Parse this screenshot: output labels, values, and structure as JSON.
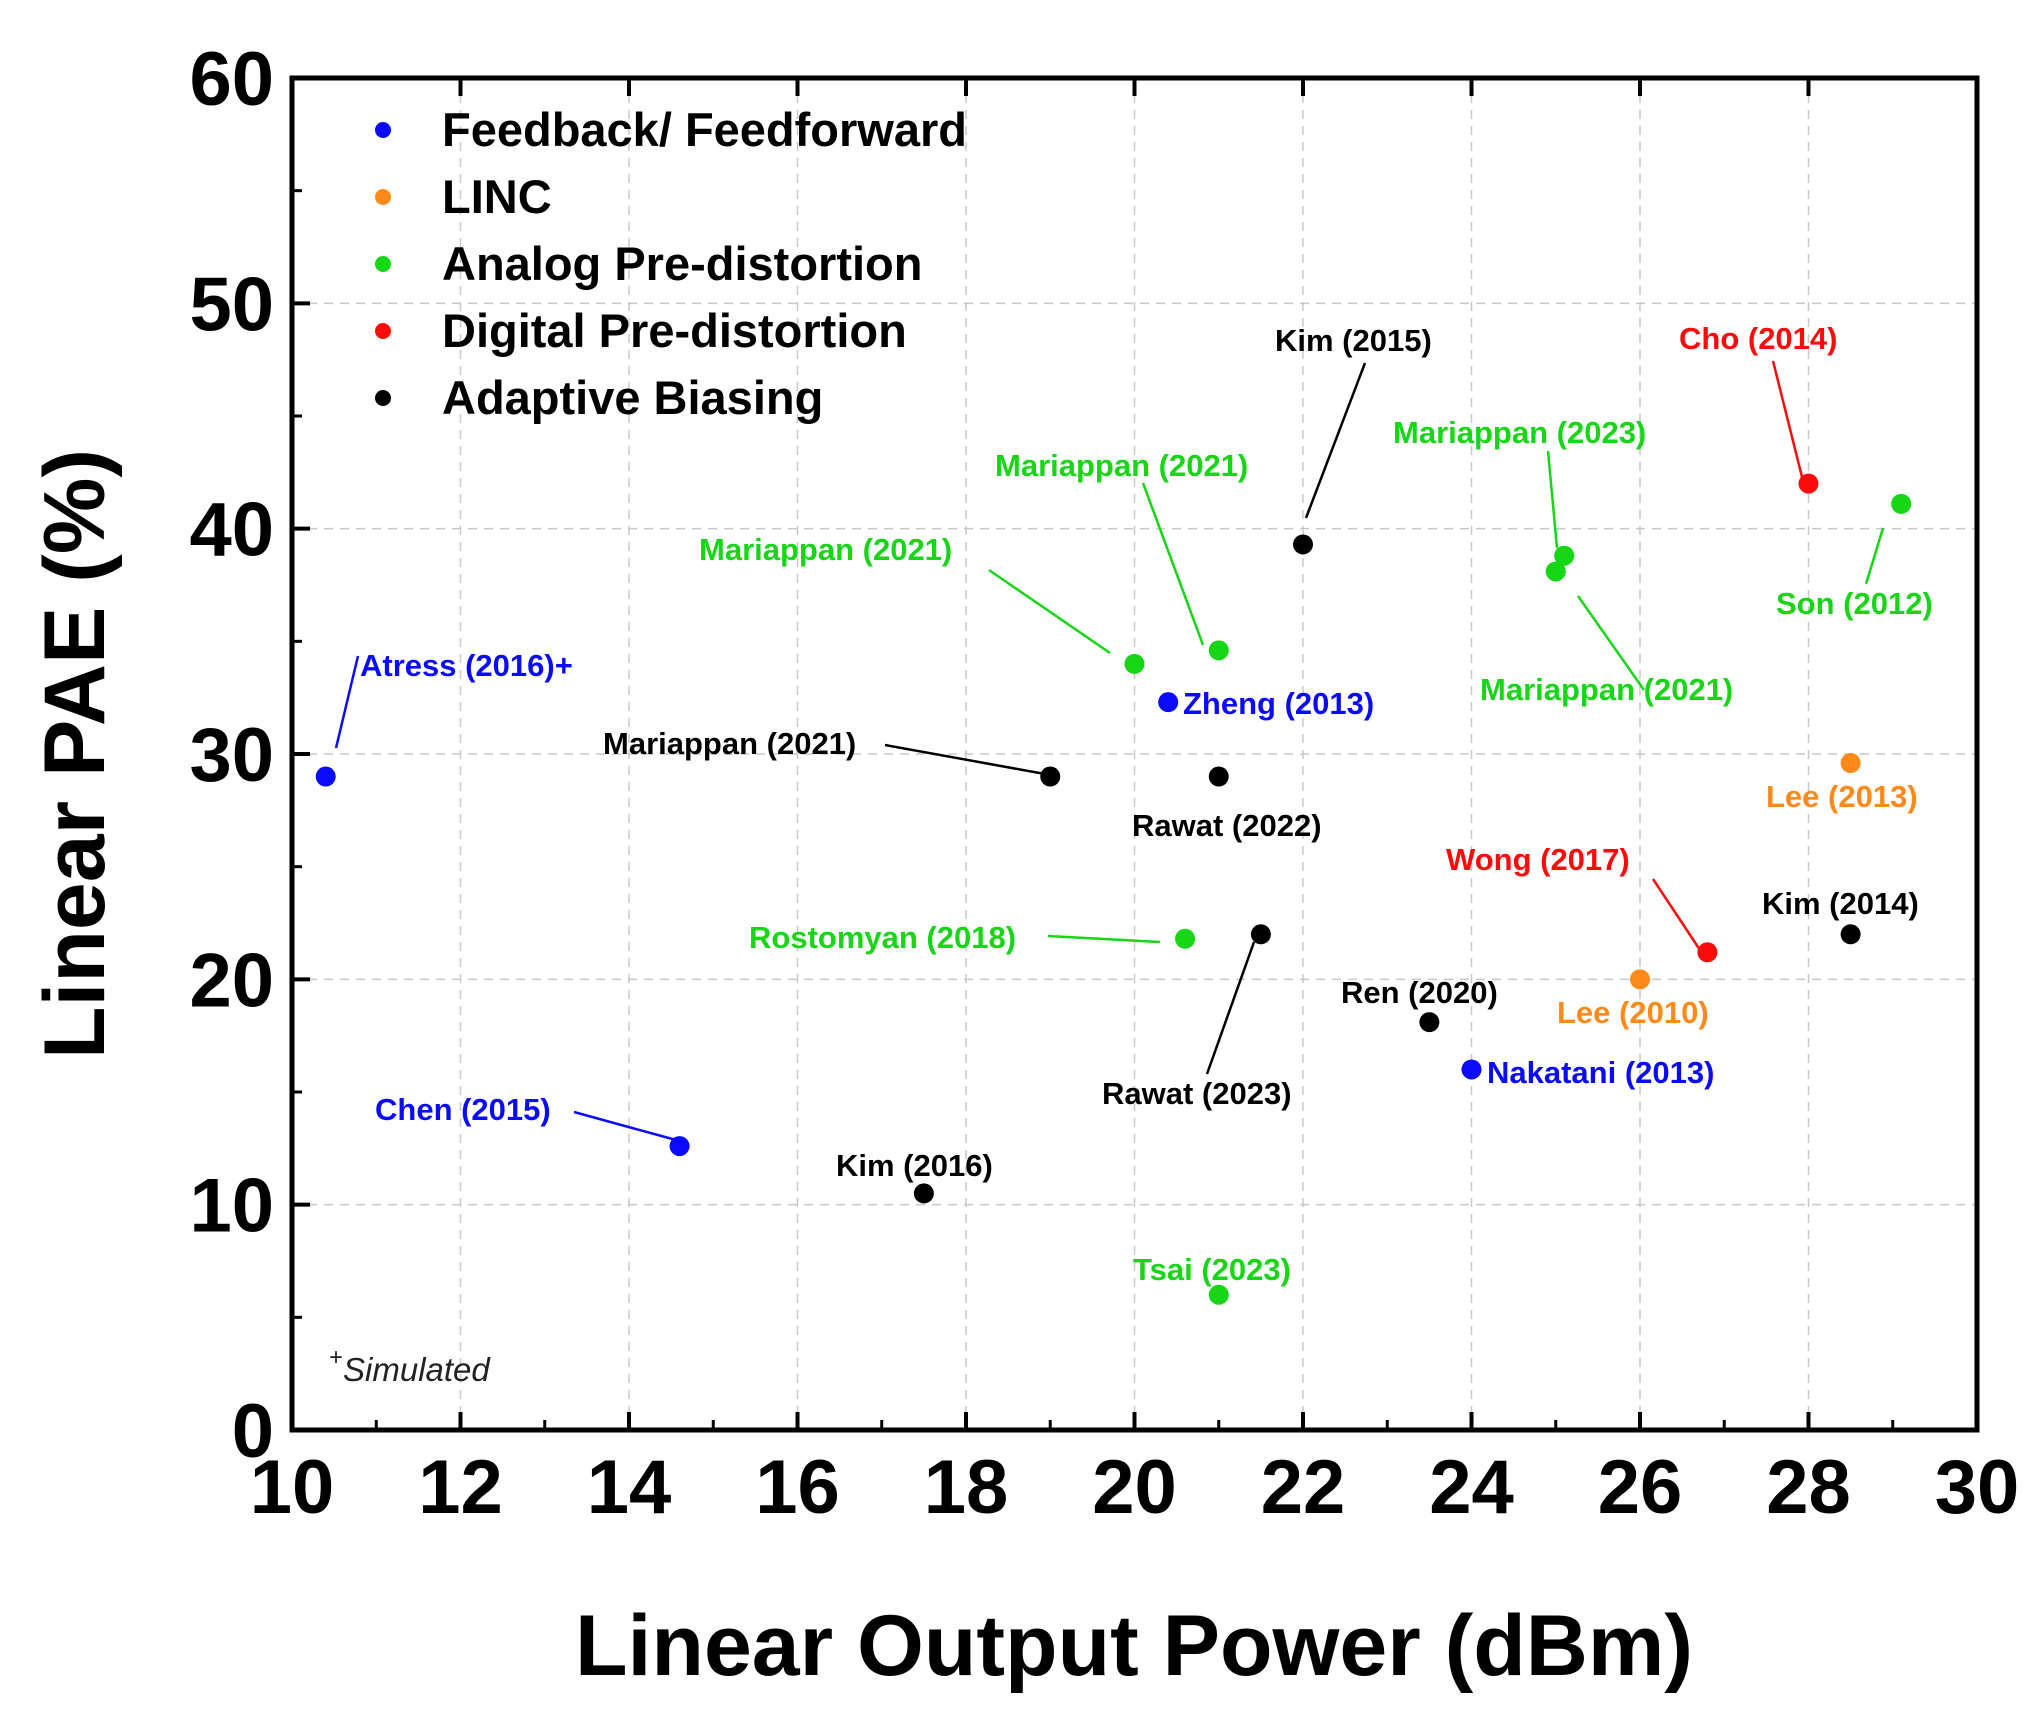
{
  "chart_data": {
    "type": "scatter",
    "xlabel": "Linear Output Power (dBm)",
    "ylabel": "Linear PAE (%)",
    "xlim": [
      10,
      30
    ],
    "ylim": [
      0,
      60
    ],
    "xticks": [
      10,
      12,
      14,
      16,
      18,
      20,
      22,
      24,
      26,
      28,
      30
    ],
    "yticks": [
      0,
      10,
      20,
      30,
      40,
      50,
      60
    ],
    "grid": true,
    "legend_position": "top-left",
    "note": {
      "mark": "+",
      "text": "Simulated"
    },
    "series": [
      {
        "name": "Feedback/ Feedforward",
        "color": "#0a0aff",
        "points": [
          {
            "x": 10.4,
            "y": 29.0,
            "label": "Atress (2016)+"
          },
          {
            "x": 14.6,
            "y": 12.6,
            "label": "Chen (2015)"
          },
          {
            "x": 20.4,
            "y": 32.3,
            "label": "Zheng (2013)"
          },
          {
            "x": 24.0,
            "y": 16.0,
            "label": "Nakatani (2013)"
          }
        ]
      },
      {
        "name": "LINC",
        "color": "#ff8a1a",
        "points": [
          {
            "x": 26.0,
            "y": 20.0,
            "label": "Lee (2010)"
          },
          {
            "x": 28.5,
            "y": 29.6,
            "label": "Lee (2013)"
          }
        ]
      },
      {
        "name": "Analog Pre-distortion",
        "color": "#16d616",
        "points": [
          {
            "x": 20.0,
            "y": 34.0,
            "label": "Mariappan (2021)"
          },
          {
            "x": 21.0,
            "y": 34.6,
            "label": "Mariappan (2021)"
          },
          {
            "x": 25.1,
            "y": 38.8,
            "label": "Mariappan (2023)"
          },
          {
            "x": 25.0,
            "y": 38.1,
            "label": "Mariappan (2021)"
          },
          {
            "x": 29.1,
            "y": 41.1,
            "label": "Son (2012)"
          },
          {
            "x": 20.6,
            "y": 21.8,
            "label": "Rostomyan (2018)"
          },
          {
            "x": 21.0,
            "y": 6.0,
            "label": "Tsai (2023)"
          }
        ]
      },
      {
        "name": "Digital Pre-distortion",
        "color": "#ff0a0a",
        "points": [
          {
            "x": 28.0,
            "y": 42.0,
            "label": "Cho (2014)"
          },
          {
            "x": 26.8,
            "y": 21.2,
            "label": "Wong (2017)"
          }
        ]
      },
      {
        "name": "Adaptive Biasing",
        "color": "#000000",
        "points": [
          {
            "x": 22.0,
            "y": 39.3,
            "label": "Kim (2015)"
          },
          {
            "x": 19.0,
            "y": 29.0,
            "label": "Mariappan (2021)"
          },
          {
            "x": 21.0,
            "y": 29.0,
            "label": "Rawat (2022)"
          },
          {
            "x": 21.5,
            "y": 22.0,
            "label": "Rawat (2023)"
          },
          {
            "x": 23.5,
            "y": 18.1,
            "label": "Ren (2020)"
          },
          {
            "x": 28.5,
            "y": 22.0,
            "label": "Kim (2014)"
          },
          {
            "x": 17.5,
            "y": 10.5,
            "label": "Kim (2016)"
          }
        ]
      }
    ]
  }
}
